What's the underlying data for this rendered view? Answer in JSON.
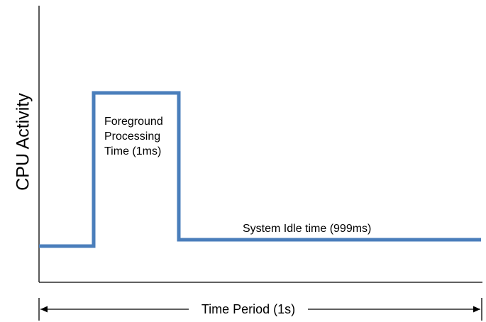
{
  "diagram": {
    "y_axis_label": "CPU Activity",
    "foreground_label": {
      "line1": "Foreground",
      "line2": "Processing",
      "line3": "Time (1ms)"
    },
    "idle_label": "System Idle time (999ms)",
    "period_label": "Time Period (1s)",
    "colors": {
      "activity_line": "#4a7ebb",
      "axes": "#000000",
      "text": "#000000"
    }
  }
}
